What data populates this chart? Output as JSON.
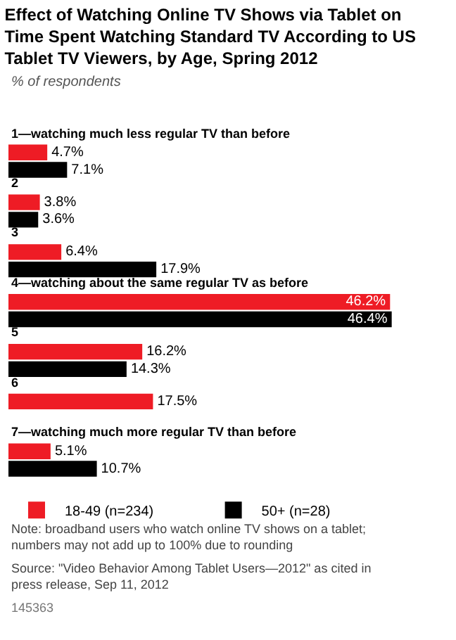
{
  "chart_data": {
    "type": "bar",
    "orientation": "horizontal",
    "title": "Effect of Watching Online TV Shows via Tablet on Time Spent Watching Standard TV According to US Tablet TV Viewers, by Age, Spring 2012",
    "subtitle": "% of respondents",
    "categories": [
      "1—watching much less regular TV than before",
      "2",
      "3",
      "4—watching about the same regular TV as before",
      "5",
      "6",
      "7—watching much more regular TV than before"
    ],
    "series": [
      {
        "name": "18-49 (n=234)",
        "color": "#ee1c25",
        "values": [
          4.7,
          3.8,
          6.4,
          46.2,
          16.2,
          17.5,
          5.1
        ],
        "value_labels": [
          "4.7%",
          "3.8%",
          "6.4%",
          "46.2%",
          "16.2%",
          "17.5%",
          "5.1%"
        ]
      },
      {
        "name": "50+ (n=28)",
        "color": "#000000",
        "values": [
          7.1,
          3.6,
          17.9,
          46.4,
          14.3,
          null,
          10.7
        ],
        "value_labels": [
          "7.1%",
          "3.6%",
          "17.9%",
          "46.4%",
          "14.3%",
          null,
          "10.7%"
        ]
      }
    ],
    "legend": "bottom",
    "grid": false,
    "annotations": [
      "Note: broadband users who watch online TV shows on a tablet; numbers may not add up to 100% due to rounding",
      "Source: \"Video Behavior Among Tablet Users—2012\" as cited in press release, Sep 11, 2012",
      "145363"
    ]
  }
}
